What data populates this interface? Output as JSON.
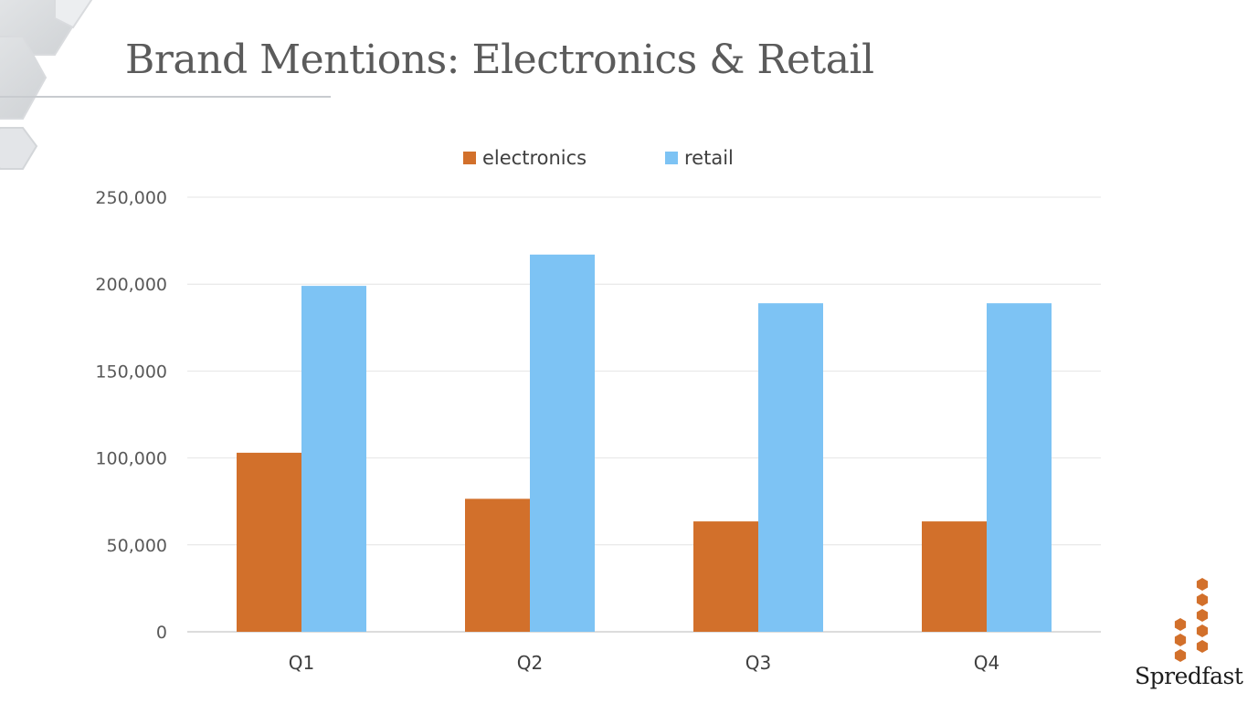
{
  "slide": {
    "title": "Brand Mentions: Electronics & Retail"
  },
  "brand": {
    "wordmark": "Spredfast",
    "icon": "hexagon-cluster-icon",
    "color": "#d2702b"
  },
  "chart_data": {
    "type": "bar",
    "categories": [
      "Q1",
      "Q2",
      "Q3",
      "Q4"
    ],
    "series": [
      {
        "name": "electronics",
        "color": "#d2702b",
        "values": [
          103000,
          76500,
          63500,
          63500
        ]
      },
      {
        "name": "retail",
        "color": "#7dc3f4",
        "values": [
          199000,
          217000,
          189000,
          189000
        ]
      }
    ],
    "ylim": [
      0,
      250000
    ],
    "yticks": [
      0,
      50000,
      100000,
      150000,
      200000,
      250000
    ],
    "ytick_labels": [
      "0",
      "50,000",
      "100,000",
      "150,000",
      "200,000",
      "250,000"
    ],
    "grid": true,
    "legend_position": "top-center",
    "title": "",
    "xlabel": "",
    "ylabel": ""
  }
}
